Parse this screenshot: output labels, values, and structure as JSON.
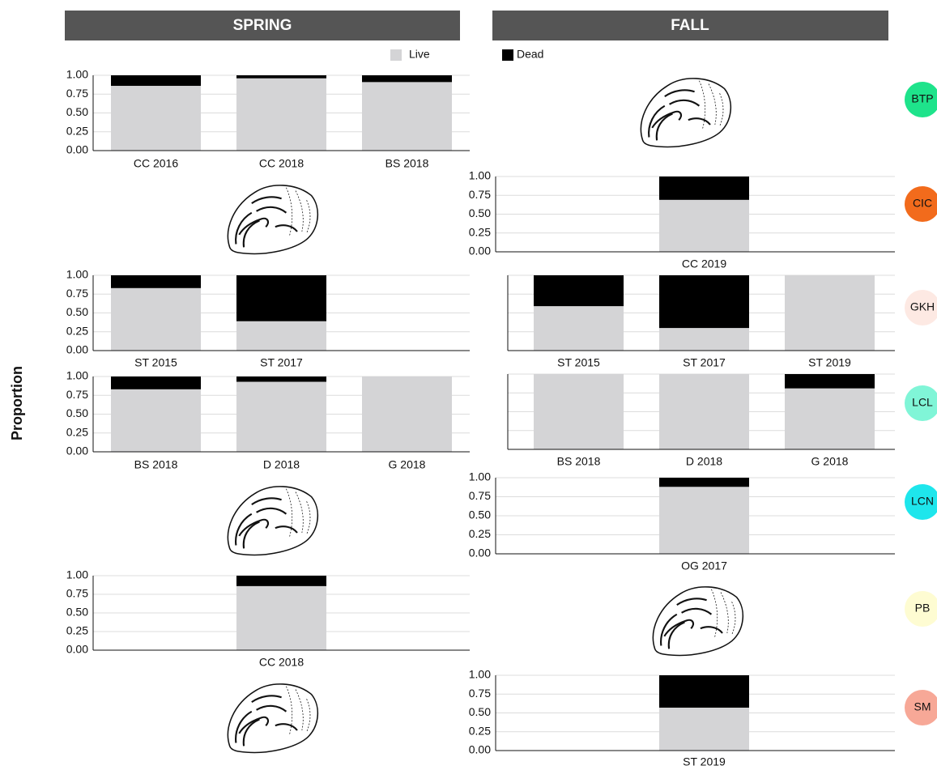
{
  "headers": [
    "SPRING",
    "FALL"
  ],
  "y_label": "Proportion",
  "sites": [
    {
      "label": "BTP",
      "color": "#1ee38b"
    },
    {
      "label": "CIC",
      "color": "#f26b1c"
    },
    {
      "label": "GKH",
      "color": "#fde9e3"
    },
    {
      "label": "LCL",
      "color": "#80f5d7"
    },
    {
      "label": "LCN",
      "color": "#1ee6ec"
    },
    {
      "label": "PB",
      "color": "#fefcd2"
    },
    {
      "label": "SM",
      "color": "#f7a897"
    }
  ],
  "chart_data": [
    {
      "type": "bar",
      "stacked": true,
      "categories": [
        "CC 2016",
        "CC 2018",
        "BS 2018"
      ],
      "series": [
        {
          "name": "Live",
          "color": "#d4d4d6",
          "values": [
            0.86,
            0.96,
            0.91
          ]
        },
        {
          "name": "Dead",
          "color": "#000000",
          "values": [
            0.14,
            0.04,
            0.09
          ]
        }
      ],
      "ylim": [
        0,
        1
      ],
      "yticks": [
        {
          "value": 0,
          "label": "0.00"
        },
        {
          "value": 0.25,
          "label": "0.25"
        },
        {
          "value": 0.5,
          "label": "0.50"
        },
        {
          "value": 0.75,
          "label": "0.75"
        },
        {
          "value": 1,
          "label": "1.00"
        }
      ],
      "grid": true
    },
    {
      "type": "bar",
      "stacked": true,
      "categories": [
        "CC 2019"
      ],
      "series": [
        {
          "name": "Live",
          "color": "#d4d4d6",
          "values": [
            0.69
          ]
        },
        {
          "name": "Dead",
          "color": "#000000",
          "values": [
            0.31
          ]
        }
      ],
      "ylim": [
        0,
        1
      ],
      "yticks": [
        {
          "value": 0,
          "label": "0.00"
        },
        {
          "value": 0.25,
          "label": "0.25"
        },
        {
          "value": 0.5,
          "label": "0.50"
        },
        {
          "value": 0.75,
          "label": "0.75"
        },
        {
          "value": 1,
          "label": "1.00"
        }
      ],
      "grid": true
    },
    {
      "type": "bar",
      "stacked": true,
      "categories": [
        "ST 2015",
        "ST 2017"
      ],
      "series": [
        {
          "name": "Live",
          "color": "#d4d4d6",
          "values": [
            0.83,
            0.39
          ]
        },
        {
          "name": "Dead",
          "color": "#000000",
          "values": [
            0.17,
            0.61
          ]
        }
      ],
      "ylim": [
        0,
        1
      ],
      "yticks": [
        {
          "value": 0,
          "label": "0.00"
        },
        {
          "value": 0.25,
          "label": "0.25"
        },
        {
          "value": 0.5,
          "label": "0.50"
        },
        {
          "value": 0.75,
          "label": "0.75"
        },
        {
          "value": 1,
          "label": "1.00"
        }
      ],
      "grid": true
    },
    {
      "type": "bar",
      "stacked": true,
      "categories": [
        "ST 2015",
        "ST 2017",
        "ST 2019"
      ],
      "series": [
        {
          "name": "Live",
          "color": "#d4d4d6",
          "values": [
            0.59,
            0.3,
            1
          ]
        },
        {
          "name": "Dead",
          "color": "#000000",
          "values": [
            0.41,
            0.7,
            0
          ]
        }
      ],
      "ylim": [
        0,
        1
      ],
      "yticks": [
        0,
        0.25,
        0.5,
        0.75,
        1
      ],
      "ytick_labels": false,
      "grid": true
    },
    {
      "type": "bar",
      "stacked": true,
      "categories": [
        "BS 2018",
        "D 2018",
        "G 2018"
      ],
      "series": [
        {
          "name": "Live",
          "color": "#d4d4d6",
          "values": [
            0.83,
            0.93,
            1
          ]
        },
        {
          "name": "Dead",
          "color": "#000000",
          "values": [
            0.17,
            0.07,
            0
          ]
        }
      ],
      "ylim": [
        0,
        1
      ],
      "yticks": [
        {
          "value": 0,
          "label": "0.00"
        },
        {
          "value": 0.25,
          "label": "0.25"
        },
        {
          "value": 0.5,
          "label": "0.50"
        },
        {
          "value": 0.75,
          "label": "0.75"
        },
        {
          "value": 1,
          "label": "1.00"
        }
      ],
      "grid": true
    },
    {
      "type": "bar",
      "stacked": true,
      "categories": [
        "BS 2018",
        "D 2018",
        "G 2018"
      ],
      "series": [
        {
          "name": "Live",
          "color": "#d4d4d6",
          "values": [
            1,
            1,
            0.81
          ]
        },
        {
          "name": "Dead",
          "color": "#000000",
          "values": [
            0,
            0,
            0.19
          ]
        }
      ],
      "ylim": [
        0,
        1
      ],
      "yticks": [
        0,
        0.25,
        0.5,
        0.75,
        1
      ],
      "ytick_labels": false,
      "grid": true
    },
    {
      "type": "bar",
      "stacked": true,
      "categories": [
        "OG 2017"
      ],
      "series": [
        {
          "name": "Live",
          "color": "#d4d4d6",
          "values": [
            0.88
          ]
        },
        {
          "name": "Dead",
          "color": "#000000",
          "values": [
            0.12
          ]
        }
      ],
      "ylim": [
        0,
        1
      ],
      "yticks": [
        {
          "value": 0,
          "label": "0.00"
        },
        {
          "value": 0.25,
          "label": "0.25"
        },
        {
          "value": 0.5,
          "label": "0.50"
        },
        {
          "value": 0.75,
          "label": "0.75"
        },
        {
          "value": 1,
          "label": "1.00"
        }
      ],
      "grid": true
    },
    {
      "type": "bar",
      "stacked": true,
      "categories": [
        "CC 2018"
      ],
      "series": [
        {
          "name": "Live",
          "color": "#d4d4d6",
          "values": [
            0.86
          ]
        },
        {
          "name": "Dead",
          "color": "#000000",
          "values": [
            0.14
          ]
        }
      ],
      "ylim": [
        0,
        1
      ],
      "yticks": [
        {
          "value": 0,
          "label": "0.00"
        },
        {
          "value": 0.25,
          "label": "0.25"
        },
        {
          "value": 0.5,
          "label": "0.50"
        },
        {
          "value": 0.75,
          "label": "0.75"
        },
        {
          "value": 1,
          "label": "1.00"
        }
      ],
      "grid": true
    },
    {
      "type": "bar",
      "stacked": true,
      "categories": [
        "ST 2019"
      ],
      "series": [
        {
          "name": "Live",
          "color": "#d4d4d6",
          "values": [
            0.57
          ]
        },
        {
          "name": "Dead",
          "color": "#000000",
          "values": [
            0.43
          ]
        }
      ],
      "ylim": [
        0,
        1
      ],
      "yticks": [
        {
          "value": 0,
          "label": "0.00"
        },
        {
          "value": 0.25,
          "label": "0.25"
        },
        {
          "value": 0.5,
          "label": "0.50"
        },
        {
          "value": 0.75,
          "label": "0.75"
        },
        {
          "value": 1,
          "label": "1.00"
        }
      ],
      "grid": true
    }
  ]
}
